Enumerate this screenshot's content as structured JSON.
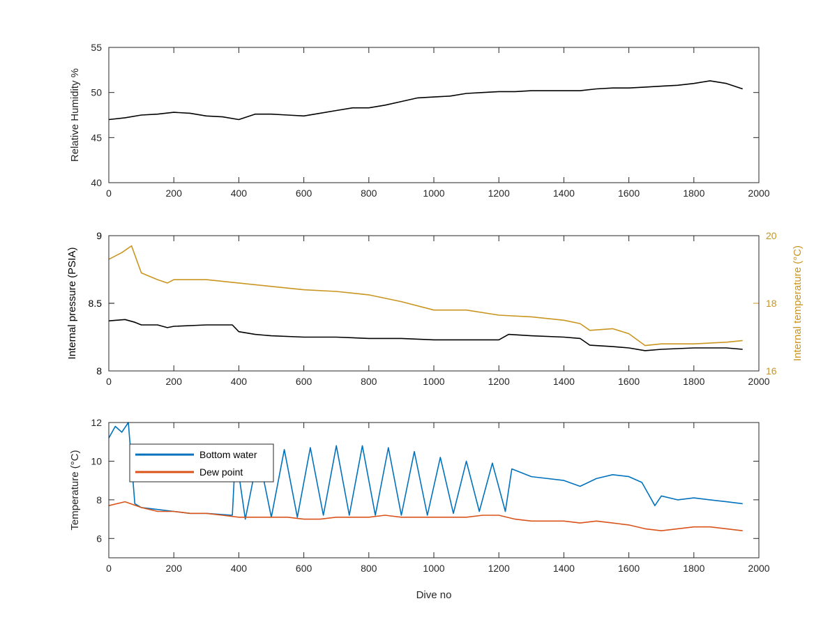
{
  "chart_data": [
    {
      "type": "line",
      "xlabel": "",
      "ylabel": "Relative Humidity %",
      "xlim": [
        0,
        2000
      ],
      "ylim": [
        40,
        55
      ],
      "xticks": [
        "0",
        "200",
        "400",
        "600",
        "800",
        "1000",
        "1200",
        "1400",
        "1600",
        "1800",
        "2000"
      ],
      "yticks": [
        "40",
        "45",
        "50",
        "55"
      ],
      "grid": false,
      "series": [
        {
          "color": "#000000",
          "x": [
            0,
            50,
            100,
            150,
            200,
            250,
            300,
            350,
            400,
            450,
            500,
            550,
            600,
            650,
            700,
            750,
            800,
            850,
            900,
            950,
            1000,
            1050,
            1100,
            1150,
            1200,
            1250,
            1300,
            1350,
            1400,
            1450,
            1500,
            1550,
            1600,
            1650,
            1700,
            1750,
            1800,
            1850,
            1900,
            1950
          ],
          "y": [
            47.0,
            47.2,
            47.5,
            47.6,
            47.8,
            47.7,
            47.4,
            47.3,
            47.0,
            47.6,
            47.6,
            47.5,
            47.4,
            47.7,
            48.0,
            48.3,
            48.3,
            48.6,
            49.0,
            49.4,
            49.5,
            49.6,
            49.9,
            50.0,
            50.1,
            50.1,
            50.2,
            50.2,
            50.2,
            50.2,
            50.4,
            50.5,
            50.5,
            50.6,
            50.7,
            50.8,
            51.0,
            51.3,
            51.0,
            50.4
          ]
        }
      ]
    },
    {
      "type": "line",
      "xlabel": "",
      "ylabel": "Internal pressure (PSIA)",
      "ylabel_right": "Internal temperature (°C)",
      "xlim": [
        0,
        2000
      ],
      "ylim": [
        8,
        9
      ],
      "ylim_right": [
        16,
        20
      ],
      "xticks": [
        "0",
        "200",
        "400",
        "600",
        "800",
        "1000",
        "1200",
        "1400",
        "1600",
        "1800",
        "2000"
      ],
      "yticks": [
        "8",
        "8.5",
        "9"
      ],
      "yticks_right": [
        "16",
        "18",
        "20"
      ],
      "grid": false,
      "series": [
        {
          "axis": "left",
          "color": "#000000",
          "x": [
            0,
            50,
            80,
            100,
            150,
            180,
            200,
            300,
            380,
            400,
            450,
            500,
            600,
            700,
            800,
            900,
            1000,
            1100,
            1200,
            1230,
            1300,
            1400,
            1450,
            1480,
            1550,
            1600,
            1650,
            1700,
            1800,
            1900,
            1950
          ],
          "y": [
            8.37,
            8.38,
            8.36,
            8.34,
            8.34,
            8.32,
            8.33,
            8.34,
            8.34,
            8.29,
            8.27,
            8.26,
            8.25,
            8.25,
            8.24,
            8.24,
            8.23,
            8.23,
            8.23,
            8.27,
            8.26,
            8.25,
            8.24,
            8.19,
            8.18,
            8.17,
            8.15,
            8.16,
            8.17,
            8.17,
            8.16
          ]
        },
        {
          "axis": "right",
          "color": "#c9951f",
          "x": [
            0,
            40,
            70,
            100,
            150,
            180,
            200,
            300,
            400,
            500,
            600,
            700,
            800,
            900,
            1000,
            1100,
            1200,
            1300,
            1400,
            1450,
            1480,
            1550,
            1600,
            1650,
            1700,
            1800,
            1900,
            1950
          ],
          "y": [
            19.3,
            19.5,
            19.7,
            18.9,
            18.7,
            18.6,
            18.7,
            18.7,
            18.6,
            18.5,
            18.4,
            18.35,
            18.25,
            18.05,
            17.8,
            17.8,
            17.65,
            17.6,
            17.5,
            17.4,
            17.2,
            17.25,
            17.1,
            16.75,
            16.8,
            16.8,
            16.85,
            16.9
          ]
        }
      ]
    },
    {
      "type": "line",
      "xlabel": "Dive no",
      "ylabel": "Temperature (°C)",
      "xlim": [
        0,
        2000
      ],
      "ylim": [
        5,
        12
      ],
      "xticks": [
        "0",
        "200",
        "400",
        "600",
        "800",
        "1000",
        "1200",
        "1400",
        "1600",
        "1800",
        "2000"
      ],
      "yticks": [
        "6",
        "8",
        "10",
        "12"
      ],
      "grid": false,
      "legend_position": "top-left",
      "series": [
        {
          "name": "Bottom water",
          "color": "#0072bd",
          "x": [
            0,
            20,
            40,
            60,
            80,
            100,
            150,
            200,
            250,
            300,
            380,
            390,
            420,
            460,
            500,
            540,
            580,
            620,
            660,
            700,
            740,
            780,
            820,
            860,
            900,
            940,
            980,
            1020,
            1060,
            1100,
            1140,
            1180,
            1220,
            1240,
            1300,
            1400,
            1450,
            1500,
            1550,
            1600,
            1640,
            1660,
            1680,
            1700,
            1750,
            1800,
            1850,
            1900,
            1950
          ],
          "y": [
            11.2,
            11.8,
            11.5,
            12.0,
            7.8,
            7.6,
            7.5,
            7.4,
            7.3,
            7.3,
            7.2,
            10.5,
            7.0,
            10.4,
            7.1,
            10.6,
            7.1,
            10.7,
            7.2,
            10.8,
            7.2,
            10.8,
            7.2,
            10.7,
            7.2,
            10.5,
            7.2,
            10.2,
            7.3,
            10.0,
            7.4,
            9.9,
            7.4,
            9.6,
            9.2,
            9.0,
            8.7,
            9.1,
            9.3,
            9.2,
            8.9,
            8.3,
            7.7,
            8.2,
            8.0,
            8.1,
            8.0,
            7.9,
            7.8
          ]
        },
        {
          "name": "Dew point",
          "color": "#d95319",
          "x": [
            0,
            50,
            100,
            150,
            200,
            250,
            300,
            350,
            400,
            450,
            500,
            550,
            600,
            650,
            700,
            750,
            800,
            850,
            900,
            950,
            1000,
            1050,
            1100,
            1150,
            1200,
            1250,
            1300,
            1350,
            1400,
            1450,
            1500,
            1550,
            1600,
            1650,
            1700,
            1750,
            1800,
            1850,
            1900,
            1950
          ],
          "y": [
            7.7,
            7.9,
            7.6,
            7.4,
            7.4,
            7.3,
            7.3,
            7.2,
            7.1,
            7.1,
            7.1,
            7.1,
            7.0,
            7.0,
            7.1,
            7.1,
            7.1,
            7.2,
            7.1,
            7.1,
            7.1,
            7.1,
            7.1,
            7.2,
            7.2,
            7.0,
            6.9,
            6.9,
            6.9,
            6.8,
            6.9,
            6.8,
            6.7,
            6.5,
            6.4,
            6.5,
            6.6,
            6.6,
            6.5,
            6.4
          ]
        }
      ]
    }
  ]
}
